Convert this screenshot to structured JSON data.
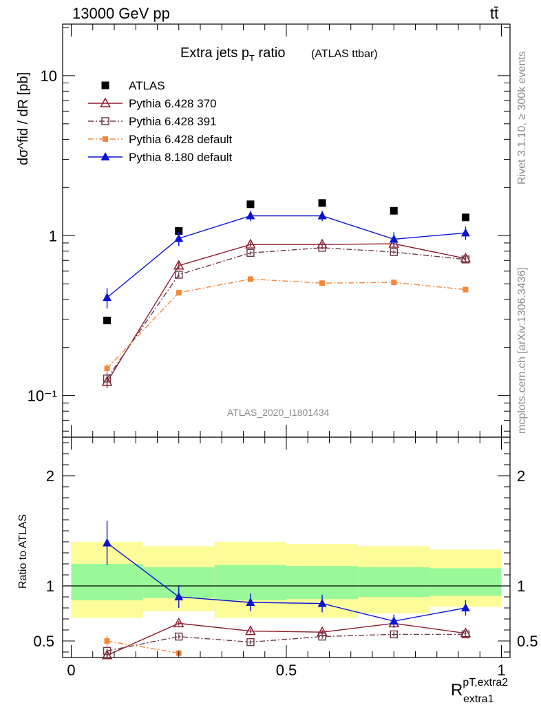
{
  "header": {
    "energy": "13000 GeV pp",
    "process": "tt̄",
    "rivet": "Rivet 3.1.10, ≥ 300k events",
    "site": "mcplots.cern.ch [arXiv:1306.3436]",
    "analysis": "ATLAS_2020_I1801434"
  },
  "chart_data": [
    {
      "type": "scatter",
      "panel": "main",
      "title": "Extra jets p",
      "title_sub": "T",
      "title_tail": " ratio",
      "title_note": "(ATLAS ttbar)",
      "ylabel": "dσ^fid / dR [pb]",
      "yscale": "log",
      "ylim": [
        0.055,
        21
      ],
      "xlim": [
        -0.02,
        1.02
      ],
      "ytick_labels": [
        "10",
        "1",
        "10⁻¹"
      ],
      "legend_position": "top-left",
      "x": [
        0.0833,
        0.25,
        0.4167,
        0.5833,
        0.75,
        0.9167
      ],
      "series": [
        {
          "name": "ATLAS",
          "color": "#000000",
          "marker": "filled-square",
          "line": "none",
          "values": [
            0.295,
            1.07,
            1.57,
            1.6,
            1.43,
            1.3
          ]
        },
        {
          "name": "Pythia 6.428 370",
          "color": "#8b1a2b",
          "marker": "open-triangle",
          "line": "solid",
          "values": [
            0.122,
            0.65,
            0.88,
            0.88,
            0.89,
            0.72
          ],
          "errors": [
            0.01,
            0.03,
            0.03,
            0.03,
            0.03,
            0.03
          ]
        },
        {
          "name": "Pythia 6.428 391",
          "color": "#6b3b4a",
          "marker": "open-square",
          "line": "dashdot",
          "values": [
            0.128,
            0.57,
            0.78,
            0.84,
            0.79,
            0.71
          ],
          "errors": [
            0.01,
            0.02,
            0.02,
            0.02,
            0.02,
            0.02
          ]
        },
        {
          "name": "Pythia 6.428 default",
          "color": "#f5883a",
          "marker": "filled-square-small",
          "line": "dashdot",
          "values": [
            0.148,
            0.44,
            0.535,
            0.505,
            0.51,
            0.46
          ],
          "errors": [
            0.01,
            0.015,
            0.015,
            0.015,
            0.015,
            0.015
          ]
        },
        {
          "name": "Pythia 8.180 default",
          "color": "#0a14d2",
          "marker": "filled-triangle",
          "line": "solid",
          "values": [
            0.41,
            0.96,
            1.33,
            1.33,
            0.95,
            1.04
          ],
          "errors": [
            0.06,
            0.1,
            0.1,
            0.1,
            0.1,
            0.1
          ]
        }
      ]
    },
    {
      "type": "scatter",
      "panel": "ratio",
      "ylabel": "Ratio to ATLAS",
      "xlabel": "R",
      "xlabel_sup": "pT,extra2",
      "xlabel_sub": "extra1",
      "ylim": [
        0.35,
        2.35
      ],
      "xlim": [
        -0.02,
        1.02
      ],
      "xtick_labels": [
        "0",
        "0.5",
        "1"
      ],
      "ytick_labels": [
        "2",
        "1",
        "0.5"
      ],
      "bands": {
        "edges": [
          0,
          0.1667,
          0.3333,
          0.5,
          0.6667,
          0.8333,
          1.0
        ],
        "yellow_lo": [
          0.71,
          0.77,
          0.71,
          0.71,
          0.75,
          0.81
        ],
        "yellow_hi": [
          1.4,
          1.36,
          1.4,
          1.38,
          1.36,
          1.33
        ],
        "green_lo": [
          0.87,
          0.89,
          0.87,
          0.88,
          0.9,
          0.91
        ],
        "green_hi": [
          1.2,
          1.17,
          1.19,
          1.18,
          1.17,
          1.16
        ],
        "yellow_color": "#fcfc99",
        "green_color": "#99f999"
      },
      "x": [
        0.0833,
        0.25,
        0.4167,
        0.5833,
        0.75,
        0.9167
      ],
      "series": [
        {
          "name": "Pythia 6.428 370",
          "color": "#8b1a2b",
          "marker": "open-triangle",
          "line": "solid",
          "values": [
            0.37,
            0.66,
            0.59,
            0.58,
            0.66,
            0.57
          ],
          "errors": [
            0.02,
            0.02,
            0.02,
            0.02,
            0.02,
            0.02
          ]
        },
        {
          "name": "Pythia 6.428 391",
          "color": "#6b3b4a",
          "marker": "open-square",
          "line": "dashdot",
          "values": [
            0.41,
            0.54,
            0.49,
            0.54,
            0.56,
            0.56
          ],
          "errors": [
            0.02,
            0.02,
            0.02,
            0.02,
            0.02,
            0.02
          ]
        },
        {
          "name": "Pythia 6.428 default",
          "color": "#f5883a",
          "marker": "filled-square-small",
          "line": "dashdot",
          "values": [
            0.5,
            0.39,
            null,
            null,
            null,
            null
          ],
          "errors": [
            0.05,
            0.02,
            0,
            0,
            0,
            0
          ]
        },
        {
          "name": "Pythia 8.180 default",
          "color": "#0a14d2",
          "marker": "filled-triangle",
          "line": "solid",
          "values": [
            1.39,
            0.9,
            0.85,
            0.84,
            0.68,
            0.8
          ],
          "errors": [
            0.2,
            0.1,
            0.08,
            0.08,
            0.06,
            0.07
          ]
        }
      ]
    }
  ]
}
